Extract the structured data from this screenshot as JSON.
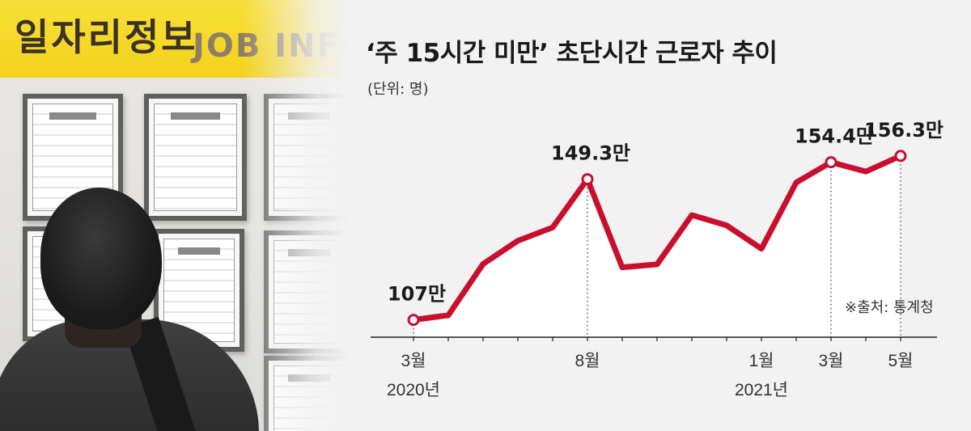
{
  "photo": {
    "banner_korean": "일자리정보",
    "banner_english": "JOB INFO"
  },
  "header": {
    "title": "‘주 15시간 미만’ 초단시간 근로자 추이",
    "unit": "(단위: 명)"
  },
  "footer": {
    "source": "※출처: 통계청"
  },
  "colors": {
    "line": "#c8102e",
    "area": "#ffffff",
    "background": "#f2f2f2",
    "banner": "#f5d628"
  },
  "chart_data": {
    "type": "area",
    "title": "‘주 15시간 미만’ 초단시간 근로자 추이",
    "unit": "(단위: 명)",
    "x": [
      "2020-03",
      "2020-04",
      "2020-05",
      "2020-06",
      "2020-07",
      "2020-08",
      "2020-09",
      "2020-10",
      "2020-11",
      "2020-12",
      "2021-01",
      "2021-02",
      "2021-03",
      "2021-04",
      "2021-05"
    ],
    "values": [
      107,
      108.4,
      123.8,
      130.8,
      134.8,
      149.3,
      122.8,
      123.7,
      138.5,
      135.4,
      128.4,
      148.3,
      154.4,
      151.6,
      156.3
    ],
    "value_unit": "만",
    "ylim": [
      95,
      165
    ],
    "tick_labels": [
      {
        "index": 0,
        "month": "3월",
        "year": "2020년"
      },
      {
        "index": 5,
        "month": "8월",
        "year": ""
      },
      {
        "index": 10,
        "month": "1월",
        "year": "2021년"
      },
      {
        "index": 12,
        "month": "3월",
        "year": ""
      },
      {
        "index": 14,
        "month": "5월",
        "year": ""
      }
    ],
    "data_labels": [
      {
        "index": 0,
        "text": "107만"
      },
      {
        "index": 5,
        "text": "149.3만"
      },
      {
        "index": 12,
        "text": "154.4만"
      },
      {
        "index": 14,
        "text": "156.3만"
      }
    ],
    "highlight_points": [
      0,
      5,
      12,
      14
    ],
    "grid": false
  }
}
